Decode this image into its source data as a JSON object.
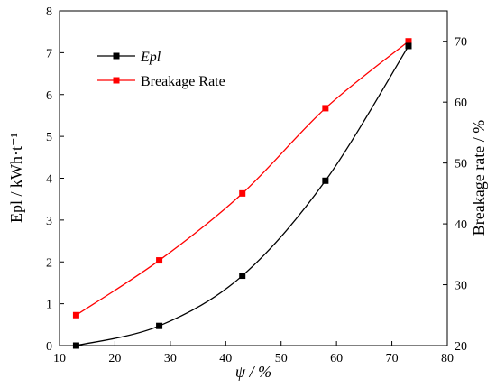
{
  "chart_data": {
    "type": "line",
    "x": [
      13,
      28,
      43,
      58,
      73
    ],
    "xlim": [
      10,
      80
    ],
    "xticks": [
      10,
      20,
      30,
      40,
      50,
      60,
      70,
      80
    ],
    "xlabel": "ψ / %",
    "ylabel_left": "Epl / kWh·t⁻¹",
    "ylim_left": [
      0,
      8
    ],
    "yticks_left": [
      0,
      1,
      2,
      3,
      4,
      5,
      6,
      7,
      8
    ],
    "ylabel_right": "Breakage rate / %",
    "ylim_right": [
      20,
      75
    ],
    "yticks_right": [
      20,
      30,
      40,
      50,
      60,
      70
    ],
    "grid": false,
    "legend_position": "top-left",
    "series": [
      {
        "name": "Epl",
        "axis": "left",
        "color": "#000000",
        "marker": "square",
        "values": [
          0.0,
          0.47,
          1.67,
          3.94,
          7.16
        ]
      },
      {
        "name": "Breakage Rate",
        "axis": "right",
        "color": "#ff0000",
        "marker": "square",
        "values": [
          25.0,
          34.0,
          45.0,
          59.0,
          70.0
        ]
      }
    ]
  }
}
